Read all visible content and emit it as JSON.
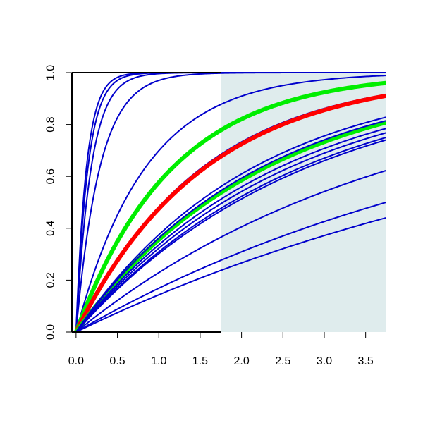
{
  "chart_data": {
    "type": "line",
    "title": "",
    "xlabel": "",
    "ylabel": "",
    "xlim": [
      -0.05,
      3.75
    ],
    "ylim": [
      0,
      1
    ],
    "x_ticks": [
      "0.0",
      "0.5",
      "1.0",
      "1.5",
      "2.0",
      "2.5",
      "3.0",
      "3.5"
    ],
    "y_ticks": [
      "0.0",
      "0.2",
      "0.4",
      "0.6",
      "0.8",
      "1.0"
    ],
    "shaded_region": {
      "x_from": 1.75,
      "x_to": 3.75,
      "color": "#dfeced"
    },
    "line_type": "cumulative exponential curves, y = 1 - exp(-rate * x)",
    "series": [
      {
        "rate": 8.0,
        "color": "#0000cc",
        "width": 2
      },
      {
        "rate": 7.0,
        "color": "#0000cc",
        "width": 2
      },
      {
        "rate": 5.5,
        "color": "#0000cc",
        "width": 2
      },
      {
        "rate": 3.5,
        "color": "#0000cc",
        "width": 2
      },
      {
        "rate": 1.2,
        "color": "#0000cc",
        "width": 2
      },
      {
        "rate": 0.86,
        "color": "#00ee00",
        "width": 6
      },
      {
        "rate": 0.66,
        "color": "#0000cc",
        "width": 2
      },
      {
        "rate": 0.65,
        "color": "#0000cc",
        "width": 2
      },
      {
        "rate": 0.645,
        "color": "#ff0000",
        "width": 6
      },
      {
        "rate": 0.44,
        "color": "#00ee00",
        "width": 6
      },
      {
        "rate": 0.47,
        "color": "#0000cc",
        "width": 2
      },
      {
        "rate": 0.45,
        "color": "#0000cc",
        "width": 2
      },
      {
        "rate": 0.41,
        "color": "#0000cc",
        "width": 2
      },
      {
        "rate": 0.39,
        "color": "#0000cc",
        "width": 2
      },
      {
        "rate": 0.37,
        "color": "#0000cc",
        "width": 2
      },
      {
        "rate": 0.36,
        "color": "#0000cc",
        "width": 2
      },
      {
        "rate": 0.26,
        "color": "#0000cc",
        "width": 2
      },
      {
        "rate": 0.185,
        "color": "#0000cc",
        "width": 2
      },
      {
        "rate": 0.155,
        "color": "#0000cc",
        "width": 2
      }
    ]
  }
}
